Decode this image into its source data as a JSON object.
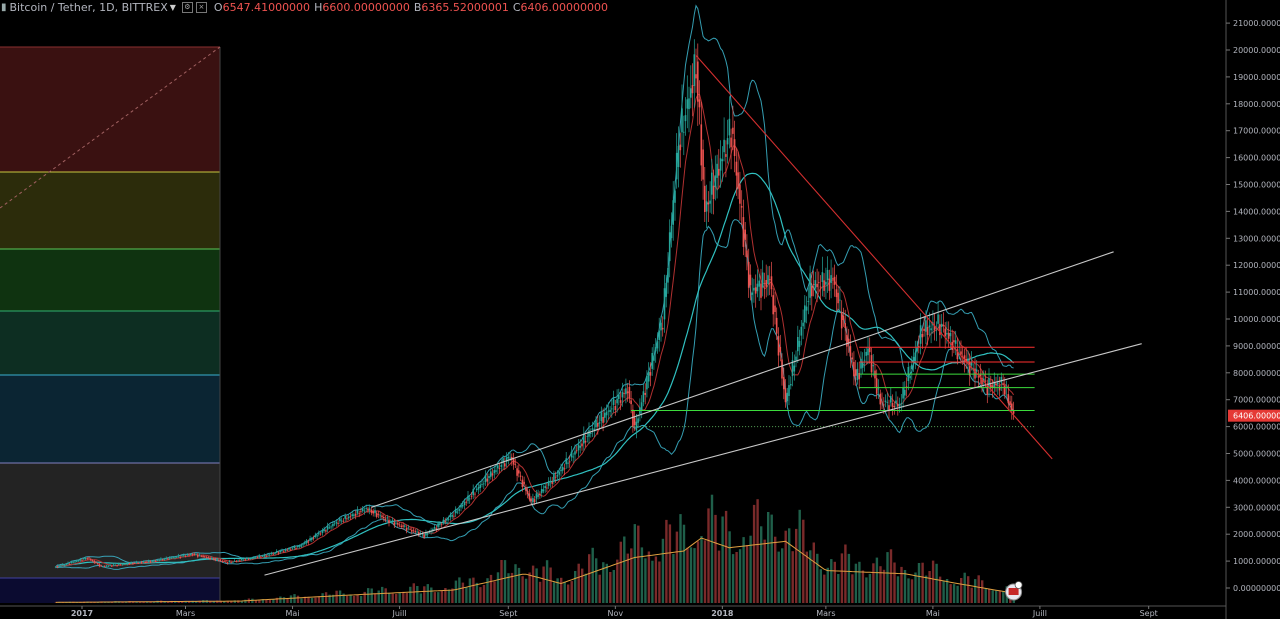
{
  "header": {
    "symbol": "Bitcoin / Tether, 1D, BITTREX",
    "open_label": "O",
    "open_value": "6547.41000000",
    "high_label": "H",
    "high_value": "6600.00000000",
    "low_label": "B",
    "low_value": "6365.52000001",
    "close_label": "C",
    "close_value": "6406.00000000",
    "icons": [
      "candles-icon",
      "caret-down-icon",
      "settings-square-icon",
      "close-square-icon"
    ]
  },
  "chart_data": {
    "type": "candlestick",
    "symbol": "Bitcoin / Tether",
    "interval": "1D",
    "exchange": "BITTREX",
    "y_axis": {
      "min": 0,
      "max": 21000,
      "step": 1000,
      "tick_labels": [
        "0.00000000",
        "1000.000000",
        "2000.000000",
        "3000.000000",
        "4000.000000",
        "5000.000000",
        "6000.000000",
        "7000.000000",
        "8000.000000",
        "9000.000000",
        "10000.000000",
        "11000.000000",
        "12000.000000",
        "13000.000000",
        "14000.000000",
        "15000.000000",
        "16000.000000",
        "17000.000000",
        "18000.000000",
        "19000.000000",
        "20000.000000",
        "21000.000000"
      ]
    },
    "x_axis": {
      "range": [
        "2016-12-17",
        "2018-09-25"
      ],
      "ticks": [
        {
          "date": "2017-01-01",
          "label": "2017",
          "bold": true
        },
        {
          "date": "2017-03-01",
          "label": "Mars",
          "bold": false
        },
        {
          "date": "2017-05-01",
          "label": "Mai",
          "bold": false
        },
        {
          "date": "2017-07-01",
          "label": "Juill",
          "bold": false
        },
        {
          "date": "2017-09-01",
          "label": "Sept",
          "bold": false
        },
        {
          "date": "2017-11-01",
          "label": "Nov",
          "bold": false
        },
        {
          "date": "2018-01-01",
          "label": "2018",
          "bold": true
        },
        {
          "date": "2018-03-01",
          "label": "Mars",
          "bold": false
        },
        {
          "date": "2018-05-01",
          "label": "Mai",
          "bold": false
        },
        {
          "date": "2018-07-01",
          "label": "Juill",
          "bold": false
        },
        {
          "date": "2018-09-01",
          "label": "Sept",
          "bold": false
        }
      ]
    },
    "price_path": [
      [
        "2016-12-17",
        780
      ],
      [
        "2017-01-04",
        1120
      ],
      [
        "2017-01-12",
        800
      ],
      [
        "2017-02-10",
        1000
      ],
      [
        "2017-03-05",
        1260
      ],
      [
        "2017-03-25",
        950
      ],
      [
        "2017-04-15",
        1200
      ],
      [
        "2017-05-05",
        1550
      ],
      [
        "2017-05-25",
        2400
      ],
      [
        "2017-06-12",
        2950
      ],
      [
        "2017-06-25",
        2500
      ],
      [
        "2017-07-15",
        1950
      ],
      [
        "2017-08-01",
        2750
      ],
      [
        "2017-08-20",
        4100
      ],
      [
        "2017-09-02",
        4900
      ],
      [
        "2017-09-14",
        3200
      ],
      [
        "2017-09-30",
        4300
      ],
      [
        "2017-10-20",
        6000
      ],
      [
        "2017-11-08",
        7400
      ],
      [
        "2017-11-12",
        5900
      ],
      [
        "2017-11-28",
        10000
      ],
      [
        "2017-12-07",
        16500
      ],
      [
        "2017-12-17",
        19400
      ],
      [
        "2017-12-22",
        14000
      ],
      [
        "2018-01-06",
        17100
      ],
      [
        "2018-01-17",
        11000
      ],
      [
        "2018-01-28",
        11500
      ],
      [
        "2018-02-06",
        6900
      ],
      [
        "2018-02-20",
        11200
      ],
      [
        "2018-03-05",
        11500
      ],
      [
        "2018-03-18",
        7800
      ],
      [
        "2018-03-25",
        8900
      ],
      [
        "2018-04-01",
        6900
      ],
      [
        "2018-04-12",
        6800
      ],
      [
        "2018-04-25",
        9600
      ],
      [
        "2018-05-05",
        9800
      ],
      [
        "2018-05-20",
        8400
      ],
      [
        "2018-06-01",
        7500
      ],
      [
        "2018-06-10",
        7600
      ],
      [
        "2018-06-16",
        6406
      ]
    ],
    "volume_path": [
      [
        "2016-12-17",
        0.01
      ],
      [
        "2017-04-01",
        0.03
      ],
      [
        "2017-06-01",
        0.12
      ],
      [
        "2017-08-01",
        0.2
      ],
      [
        "2017-09-10",
        0.45
      ],
      [
        "2017-10-01",
        0.3
      ],
      [
        "2017-11-12",
        0.7
      ],
      [
        "2017-12-10",
        0.8
      ],
      [
        "2017-12-20",
        1.0
      ],
      [
        "2018-01-05",
        0.85
      ],
      [
        "2018-02-06",
        0.95
      ],
      [
        "2018-03-01",
        0.5
      ],
      [
        "2018-04-15",
        0.45
      ],
      [
        "2018-05-15",
        0.3
      ],
      [
        "2018-06-16",
        0.15
      ]
    ],
    "current_price": 6406,
    "current_price_label": "6406.000000",
    "trendlines": [
      {
        "name": "lower-support-line",
        "color": "#c8c8c8",
        "points": [
          [
            "2017-04-15",
            480
          ],
          [
            "2018-08-28",
            9080
          ]
        ]
      },
      {
        "name": "upper-channel-line",
        "color": "#c8c8c8",
        "points": [
          [
            "2017-06-15",
            3000
          ],
          [
            "2018-08-12",
            12500
          ]
        ]
      },
      {
        "name": "descending-resistance-line",
        "color": "#d32f2f",
        "points": [
          [
            "2017-12-17",
            19800
          ],
          [
            "2018-07-08",
            4800
          ]
        ]
      }
    ],
    "horizontal_levels": [
      {
        "name": "red-level-1",
        "value": 8950,
        "from": "2018-03-20",
        "to": "2018-06-28",
        "color": "#ff3030"
      },
      {
        "name": "red-level-2",
        "value": 8400,
        "from": "2018-03-20",
        "to": "2018-06-28",
        "color": "#ff3030"
      },
      {
        "name": "green-level-1",
        "value": 7950,
        "from": "2018-03-20",
        "to": "2018-06-28",
        "color": "#3cdc3c"
      },
      {
        "name": "green-level-2",
        "value": 7450,
        "from": "2018-03-20",
        "to": "2018-06-28",
        "color": "#3cdc3c"
      },
      {
        "name": "green-level-3",
        "value": 6600,
        "from": "2017-11-10",
        "to": "2018-06-28",
        "color": "#3cdc3c"
      },
      {
        "name": "dotted-level",
        "value": 6000,
        "from": "2017-11-10",
        "to": "2018-06-28",
        "color": "#58a858",
        "dotted": true
      }
    ],
    "fib_bands": [
      {
        "color": "#3a1111",
        "line": "#8a3030"
      },
      {
        "color": "#2c2c0b",
        "line": "#c7c740"
      },
      {
        "color": "#0f3310",
        "line": "#58c758"
      },
      {
        "color": "#0d2e22",
        "line": "#30b070"
      },
      {
        "color": "#0b2533",
        "line": "#3ab0d0"
      },
      {
        "color": "#232323",
        "line": "#8080c0"
      },
      {
        "color": "#0b0b30",
        "line": "#4040a0"
      }
    ],
    "grid": false,
    "legend": "none",
    "colors": {
      "up": "#26a69a",
      "down": "#ef5350",
      "ma_fast": "#b03030",
      "ma_slow": "#30c0c0",
      "bollinger": "#3db8d0",
      "volume_ma": "#e0a040"
    }
  }
}
